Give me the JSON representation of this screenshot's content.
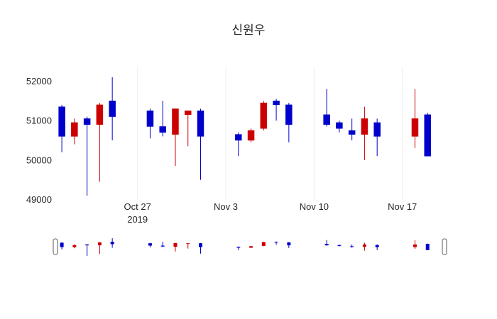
{
  "chart_data": {
    "type": "candlestick",
    "title": "신원우",
    "ylim": [
      48990,
      52350
    ],
    "y_ticks": [
      49000,
      50000,
      51000,
      52000
    ],
    "x_ticks": [
      {
        "date": "2019-10-27",
        "label": "Oct 27",
        "sublabel": "2019"
      },
      {
        "date": "2019-11-03",
        "label": "Nov 3",
        "sublabel": ""
      },
      {
        "date": "2019-11-10",
        "label": "Nov 10",
        "sublabel": ""
      },
      {
        "date": "2019-11-17",
        "label": "Nov 17",
        "sublabel": ""
      }
    ],
    "colors": {
      "increasing": "#cc0000",
      "decreasing": "#0000cc"
    },
    "grid_color": "#ececec",
    "legend": "none",
    "ohlc": [
      {
        "date": "2019-10-21",
        "open": 51350,
        "high": 51400,
        "low": 50200,
        "close": 50600
      },
      {
        "date": "2019-10-22",
        "open": 50600,
        "high": 51050,
        "low": 50400,
        "close": 50950
      },
      {
        "date": "2019-10-23",
        "open": 51050,
        "high": 51100,
        "low": 49100,
        "close": 50900
      },
      {
        "date": "2019-10-24",
        "open": 50900,
        "high": 51450,
        "low": 49450,
        "close": 51400
      },
      {
        "date": "2019-10-25",
        "open": 51500,
        "high": 52100,
        "low": 50500,
        "close": 51100
      },
      {
        "date": "2019-10-28",
        "open": 51250,
        "high": 51300,
        "low": 50550,
        "close": 50850
      },
      {
        "date": "2019-10-29",
        "open": 50850,
        "high": 51500,
        "low": 50600,
        "close": 50700
      },
      {
        "date": "2019-10-30",
        "open": 50650,
        "high": 51300,
        "low": 49850,
        "close": 51300
      },
      {
        "date": "2019-10-31",
        "open": 51150,
        "high": 51250,
        "low": 50350,
        "close": 51250
      },
      {
        "date": "2019-11-01",
        "open": 51250,
        "high": 51300,
        "low": 49500,
        "close": 50600
      },
      {
        "date": "2019-11-04",
        "open": 50650,
        "high": 50700,
        "low": 50100,
        "close": 50500
      },
      {
        "date": "2019-11-05",
        "open": 50500,
        "high": 50800,
        "low": 50450,
        "close": 50750
      },
      {
        "date": "2019-11-06",
        "open": 50800,
        "high": 51500,
        "low": 50750,
        "close": 51450
      },
      {
        "date": "2019-11-07",
        "open": 51500,
        "high": 51550,
        "low": 51000,
        "close": 51400
      },
      {
        "date": "2019-11-08",
        "open": 51400,
        "high": 51450,
        "low": 50450,
        "close": 50900
      },
      {
        "date": "2019-11-11",
        "open": 51150,
        "high": 51800,
        "low": 50850,
        "close": 50900
      },
      {
        "date": "2019-11-12",
        "open": 50950,
        "high": 51000,
        "low": 50700,
        "close": 50800
      },
      {
        "date": "2019-11-13",
        "open": 50750,
        "high": 51050,
        "low": 50500,
        "close": 50650
      },
      {
        "date": "2019-11-14",
        "open": 50650,
        "high": 51350,
        "low": 50000,
        "close": 51050
      },
      {
        "date": "2019-11-15",
        "open": 50950,
        "high": 51050,
        "low": 50100,
        "close": 50600
      },
      {
        "date": "2019-11-18",
        "open": 50600,
        "high": 51800,
        "low": 50300,
        "close": 51050
      },
      {
        "date": "2019-11-19",
        "open": 51150,
        "high": 51200,
        "low": 50100,
        "close": 50100
      }
    ]
  }
}
